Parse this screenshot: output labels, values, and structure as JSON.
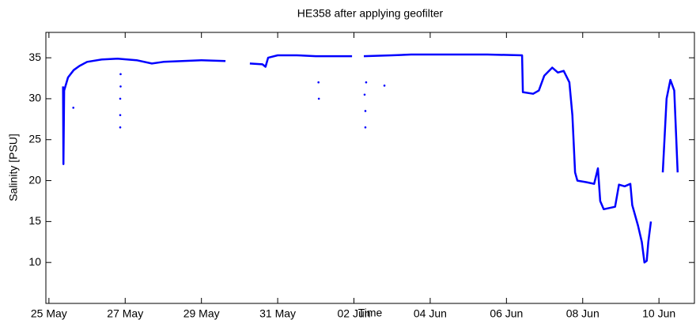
{
  "chart_data": {
    "type": "line",
    "title": "HE358 after applying geofilter",
    "xlabel": "Time",
    "ylabel": "Salinity [PSU]",
    "color": "#0000ff",
    "x": [
      25.37,
      25.38,
      25.4,
      25.5,
      25.65,
      25.8,
      26.0,
      26.4,
      26.8,
      27.3,
      27.7,
      28.0,
      28.5,
      29.0,
      29.63,
      null,
      30.27,
      30.6,
      30.68,
      30.75,
      31.0,
      31.5,
      32.0,
      32.95,
      null,
      33.26,
      34.0,
      34.5,
      35.5,
      36.5,
      37.41,
      37.43,
      37.7,
      37.85,
      37.99,
      38.2,
      38.35,
      38.5,
      38.65,
      38.73,
      38.8,
      38.86,
      39.1,
      39.3,
      39.4,
      39.46,
      39.55,
      39.85,
      39.95,
      40.1,
      40.25,
      40.3,
      40.45,
      40.55,
      40.62,
      40.68,
      40.72,
      40.79,
      null,
      41.1,
      41.2,
      41.3,
      41.4,
      41.49
    ],
    "values": [
      31.5,
      22,
      31,
      32.6,
      33.5,
      34,
      34.5,
      34.8,
      34.9,
      34.7,
      34.3,
      34.5,
      34.6,
      34.7,
      34.6,
      null,
      34.3,
      34.2,
      33.9,
      35,
      35.3,
      35.3,
      35.2,
      35.2,
      null,
      35.2,
      35.3,
      35.4,
      35.4,
      35.4,
      35.3,
      30.8,
      30.6,
      31,
      32.8,
      33.8,
      33.2,
      33.4,
      32,
      28,
      21,
      20,
      19.8,
      19.6,
      21.5,
      17.5,
      16.5,
      16.8,
      19.5,
      19.3,
      19.6,
      17,
      14.5,
      12.5,
      10,
      10.2,
      12.5,
      15,
      null,
      21,
      30,
      32.3,
      31,
      21
    ],
    "points": {
      "x": [
        25.64,
        26.87,
        26.87,
        26.87,
        26.88,
        26.88,
        32.07,
        32.08,
        33.3,
        33.3,
        33.28,
        33.32,
        33.8
      ],
      "values": [
        28.9,
        26.5,
        28,
        30,
        31.5,
        33,
        32,
        30,
        26.5,
        28.5,
        30.5,
        32,
        31.6
      ]
    },
    "xlim": [
      24.92,
      41.93
    ],
    "xticks": [
      {
        "value": 25,
        "label": "25 May"
      },
      {
        "value": 27,
        "label": "27 May"
      },
      {
        "value": 29,
        "label": "29 May"
      },
      {
        "value": 31,
        "label": "31 May"
      },
      {
        "value": 33,
        "label": "02 Jun"
      },
      {
        "value": 35,
        "label": "04 Jun"
      },
      {
        "value": 37,
        "label": "06 Jun"
      },
      {
        "value": 39,
        "label": "08 Jun"
      },
      {
        "value": 41,
        "label": "10 Jun"
      }
    ],
    "ylim": [
      5,
      38.1
    ],
    "yticks": [
      10,
      15,
      20,
      25,
      30,
      35
    ],
    "grid": false
  }
}
